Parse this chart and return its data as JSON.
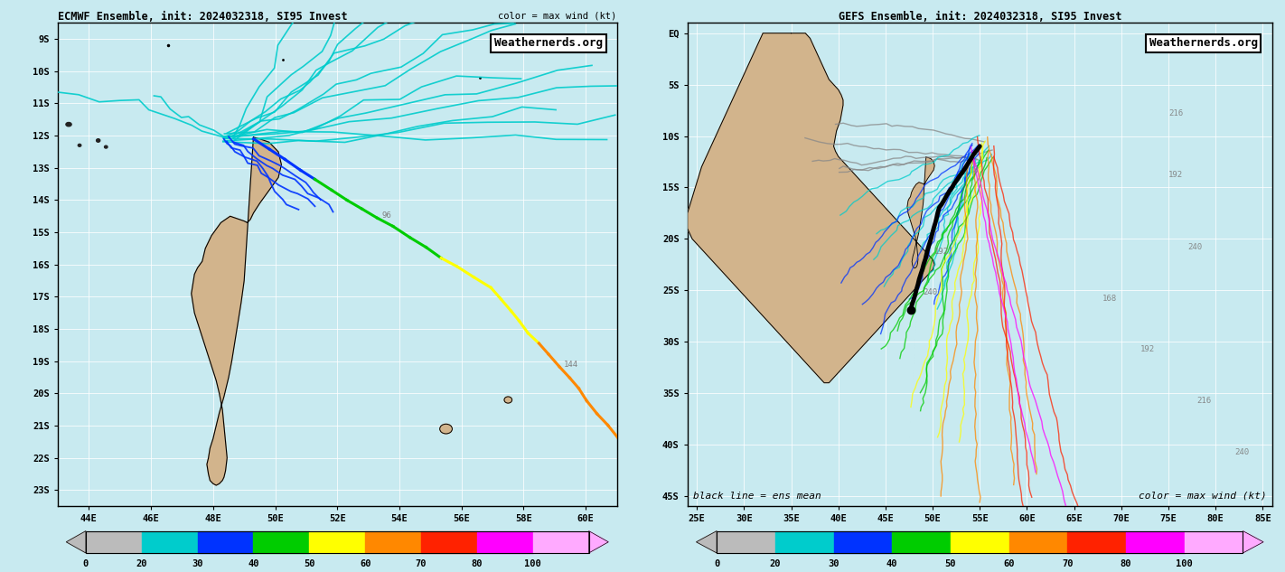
{
  "left_panel": {
    "title": "ECMWF Ensemble, init: 2024032318, SI95 Invest",
    "title_right": "color = max wind (kt)",
    "xlim": [
      43.0,
      61.0
    ],
    "ylim": [
      -23.5,
      -8.5
    ],
    "xticks": [
      44,
      46,
      48,
      50,
      52,
      54,
      56,
      58,
      60
    ],
    "yticks": [
      -9,
      -10,
      -11,
      -12,
      -13,
      -14,
      -15,
      -16,
      -17,
      -18,
      -19,
      -20,
      -21,
      -22,
      -23
    ],
    "xlabel_labels": [
      "44E",
      "46E",
      "48E",
      "50E",
      "52E",
      "54E",
      "56E",
      "58E",
      "60E"
    ],
    "ylabel_labels": [
      "9S",
      "10S",
      "11S",
      "12S",
      "13S",
      "14S",
      "15S",
      "16S",
      "17S",
      "18S",
      "19S",
      "20S",
      "21S",
      "22S",
      "23S"
    ],
    "bg_color": "#c8eaf0",
    "land_color": "#d2b48c",
    "watermark": "Weathernerds.org"
  },
  "right_panel": {
    "title": "GEFS Ensemble, init: 2024032318, SI95 Invest",
    "xlim": [
      24.0,
      86.0
    ],
    "ylim": [
      -46.0,
      1.0
    ],
    "xticks": [
      25,
      30,
      35,
      40,
      45,
      50,
      55,
      60,
      65,
      70,
      75,
      80,
      85
    ],
    "yticks": [
      0,
      -5,
      -10,
      -15,
      -20,
      -25,
      -30,
      -35,
      -40,
      -45
    ],
    "xlabel_labels": [
      "25E",
      "30E",
      "35E",
      "40E",
      "45E",
      "50E",
      "55E",
      "60E",
      "65E",
      "70E",
      "75E",
      "80E",
      "85E"
    ],
    "ylabel_labels": [
      "EQ",
      "5S",
      "10S",
      "15S",
      "20S",
      "25S",
      "30S",
      "35S",
      "40S",
      "45S"
    ],
    "bg_color": "#c8eaf0",
    "land_color": "#d2b48c",
    "watermark": "Weathernerds.org",
    "note": "black line = ens mean",
    "note2": "color = max wind (kt)"
  },
  "colorbar_colors": [
    "#bbbbbb",
    "#00cccc",
    "#0033ff",
    "#00cc00",
    "#ffff00",
    "#ff8800",
    "#ff2200",
    "#ff00ff",
    "#ffaaff"
  ],
  "colorbar_labels": [
    "0",
    "20",
    "30",
    "40",
    "50",
    "60",
    "70",
    "80",
    "100"
  ],
  "figure_bg": "#c8eaf0",
  "madagascar_left": {
    "lons": [
      49.3,
      49.5,
      49.8,
      50.1,
      50.2,
      50.1,
      49.8,
      49.5,
      49.3,
      49.2,
      49.1,
      49.0,
      48.85,
      48.7,
      48.55,
      48.4,
      48.25,
      48.1,
      47.95,
      47.85,
      47.75,
      47.7,
      47.65,
      47.5,
      47.4,
      47.35,
      47.3,
      47.35,
      47.4,
      47.5,
      47.6,
      47.7,
      47.8,
      47.9,
      48.0,
      48.1,
      48.2,
      48.3,
      48.35,
      48.4,
      48.45,
      48.4,
      48.35,
      48.3,
      48.2,
      48.1,
      48.0,
      47.9,
      47.85,
      47.8,
      47.85,
      47.9,
      48.0,
      48.1,
      48.2,
      48.35,
      48.5,
      48.6,
      48.7,
      48.8,
      48.9,
      49.0,
      49.1,
      49.2,
      49.3
    ],
    "lats": [
      -12.05,
      -12.1,
      -12.2,
      -12.5,
      -12.9,
      -13.3,
      -13.7,
      -14.1,
      -14.4,
      -14.6,
      -14.7,
      -14.65,
      -14.6,
      -14.55,
      -14.5,
      -14.6,
      -14.7,
      -14.9,
      -15.1,
      -15.3,
      -15.5,
      -15.7,
      -15.9,
      -16.1,
      -16.3,
      -16.6,
      -16.9,
      -17.2,
      -17.5,
      -17.8,
      -18.1,
      -18.4,
      -18.7,
      -19.0,
      -19.3,
      -19.6,
      -20.0,
      -20.5,
      -21.0,
      -21.5,
      -22.0,
      -22.4,
      -22.6,
      -22.7,
      -22.8,
      -22.85,
      -22.8,
      -22.7,
      -22.5,
      -22.2,
      -22.0,
      -21.7,
      -21.4,
      -21.0,
      -20.6,
      -20.1,
      -19.5,
      -19.0,
      -18.4,
      -17.8,
      -17.2,
      -16.5,
      -15.0,
      -13.5,
      -12.05
    ]
  },
  "madagascar_right": {
    "lons": [
      49.3,
      49.5,
      49.8,
      50.1,
      50.2,
      50.1,
      49.8,
      49.5,
      49.3,
      49.2,
      49.1,
      49.0,
      48.85,
      48.7,
      48.55,
      48.4,
      48.25,
      48.1,
      47.95,
      47.85,
      47.75,
      47.7,
      47.65,
      47.5,
      47.4,
      47.35,
      47.3,
      47.35,
      47.4,
      47.5,
      47.6,
      47.7,
      47.8,
      47.9,
      48.0,
      48.1,
      48.2,
      48.3,
      48.35,
      48.4,
      48.45,
      48.4,
      48.35,
      48.3,
      48.2,
      48.1,
      48.0,
      47.9,
      47.85,
      47.8,
      47.85,
      47.9,
      48.0,
      48.1,
      48.2,
      48.35,
      48.5,
      48.6,
      48.7,
      48.8,
      48.9,
      49.0,
      49.1,
      49.2,
      49.3
    ],
    "lats": [
      -12.05,
      -12.1,
      -12.2,
      -12.5,
      -12.9,
      -13.3,
      -13.7,
      -14.1,
      -14.4,
      -14.6,
      -14.7,
      -14.65,
      -14.6,
      -14.55,
      -14.5,
      -14.6,
      -14.7,
      -14.9,
      -15.1,
      -15.3,
      -15.5,
      -15.7,
      -15.9,
      -16.1,
      -16.3,
      -16.6,
      -16.9,
      -17.2,
      -17.5,
      -17.8,
      -18.1,
      -18.4,
      -18.7,
      -19.0,
      -19.3,
      -19.6,
      -20.0,
      -20.5,
      -21.0,
      -21.5,
      -22.0,
      -22.4,
      -22.6,
      -22.7,
      -22.8,
      -22.85,
      -22.8,
      -22.7,
      -22.5,
      -22.2,
      -22.0,
      -21.7,
      -21.4,
      -21.0,
      -20.6,
      -20.1,
      -19.5,
      -19.0,
      -18.4,
      -17.8,
      -17.2,
      -16.5,
      -15.0,
      -13.5,
      -12.05
    ]
  },
  "africa_right": {
    "lons": [
      35.0,
      35.5,
      36.0,
      36.5,
      37.0,
      37.5,
      38.0,
      38.5,
      39.0,
      39.5,
      40.0,
      40.3,
      40.5,
      40.5,
      40.4,
      40.3,
      40.2,
      40.0,
      39.8,
      39.7,
      39.6,
      39.5,
      39.7,
      40.0,
      40.5,
      41.0,
      41.5,
      42.0,
      42.5,
      43.0,
      43.5,
      44.0,
      44.5,
      45.0,
      45.5,
      46.0,
      46.5,
      47.0,
      47.5,
      48.0,
      48.5,
      49.0,
      49.5,
      50.0,
      50.2,
      50.0,
      49.5,
      49.0,
      48.5,
      48.0,
      47.5,
      47.0,
      46.5,
      46.0,
      45.5,
      45.0,
      44.5,
      44.0,
      43.5,
      43.0,
      42.5,
      42.0,
      41.5,
      41.0,
      40.5,
      40.0,
      39.5,
      39.0,
      38.5,
      38.0,
      37.5,
      37.0,
      36.5,
      36.0,
      35.5,
      35.0,
      34.5,
      34.0,
      33.5,
      33.0,
      32.5,
      32.0,
      31.5,
      31.0,
      30.5,
      30.0,
      29.5,
      29.0,
      28.5,
      28.0,
      27.5,
      27.0,
      26.5,
      26.0,
      25.5,
      25.0,
      24.5,
      24.0,
      24.0,
      24.5,
      25.0,
      25.5,
      26.0,
      26.5,
      27.0,
      27.5,
      28.0,
      28.5,
      29.0,
      29.5,
      30.0,
      30.5,
      31.0,
      31.5,
      32.0,
      32.5,
      33.0,
      33.5,
      34.0,
      34.5,
      35.0
    ],
    "lats": [
      0.0,
      0.0,
      0.0,
      0.0,
      -0.5,
      -1.5,
      -2.5,
      -3.5,
      -4.5,
      -5.0,
      -5.5,
      -6.0,
      -6.5,
      -7.0,
      -7.5,
      -8.0,
      -8.5,
      -9.0,
      -9.5,
      -10.0,
      -10.5,
      -11.0,
      -11.5,
      -12.0,
      -12.5,
      -13.0,
      -13.5,
      -14.0,
      -14.5,
      -15.0,
      -15.5,
      -16.0,
      -16.5,
      -17.0,
      -17.5,
      -18.0,
      -18.5,
      -19.0,
      -19.5,
      -20.0,
      -20.5,
      -21.0,
      -21.5,
      -22.0,
      -22.5,
      -23.0,
      -23.5,
      -24.0,
      -24.5,
      -25.0,
      -25.5,
      -26.0,
      -26.5,
      -27.0,
      -27.5,
      -28.0,
      -28.5,
      -29.0,
      -29.5,
      -30.0,
      -30.5,
      -31.0,
      -31.5,
      -32.0,
      -32.5,
      -33.0,
      -33.5,
      -34.0,
      -34.0,
      -33.5,
      -33.0,
      -32.5,
      -32.0,
      -31.5,
      -31.0,
      -30.5,
      -30.0,
      -29.5,
      -29.0,
      -28.5,
      -28.0,
      -27.5,
      -27.0,
      -26.5,
      -26.0,
      -25.5,
      -25.0,
      -24.5,
      -24.0,
      -23.5,
      -23.0,
      -22.5,
      -22.0,
      -21.5,
      -21.0,
      -20.5,
      -20.0,
      -19.0,
      -17.5,
      -16.0,
      -14.5,
      -13.0,
      -12.0,
      -11.0,
      -10.0,
      -9.0,
      -8.0,
      -7.0,
      -6.0,
      -5.0,
      -4.0,
      -3.0,
      -2.0,
      -1.0,
      0.0,
      0.0,
      0.0,
      0.0,
      0.0,
      0.0,
      0.0
    ]
  }
}
